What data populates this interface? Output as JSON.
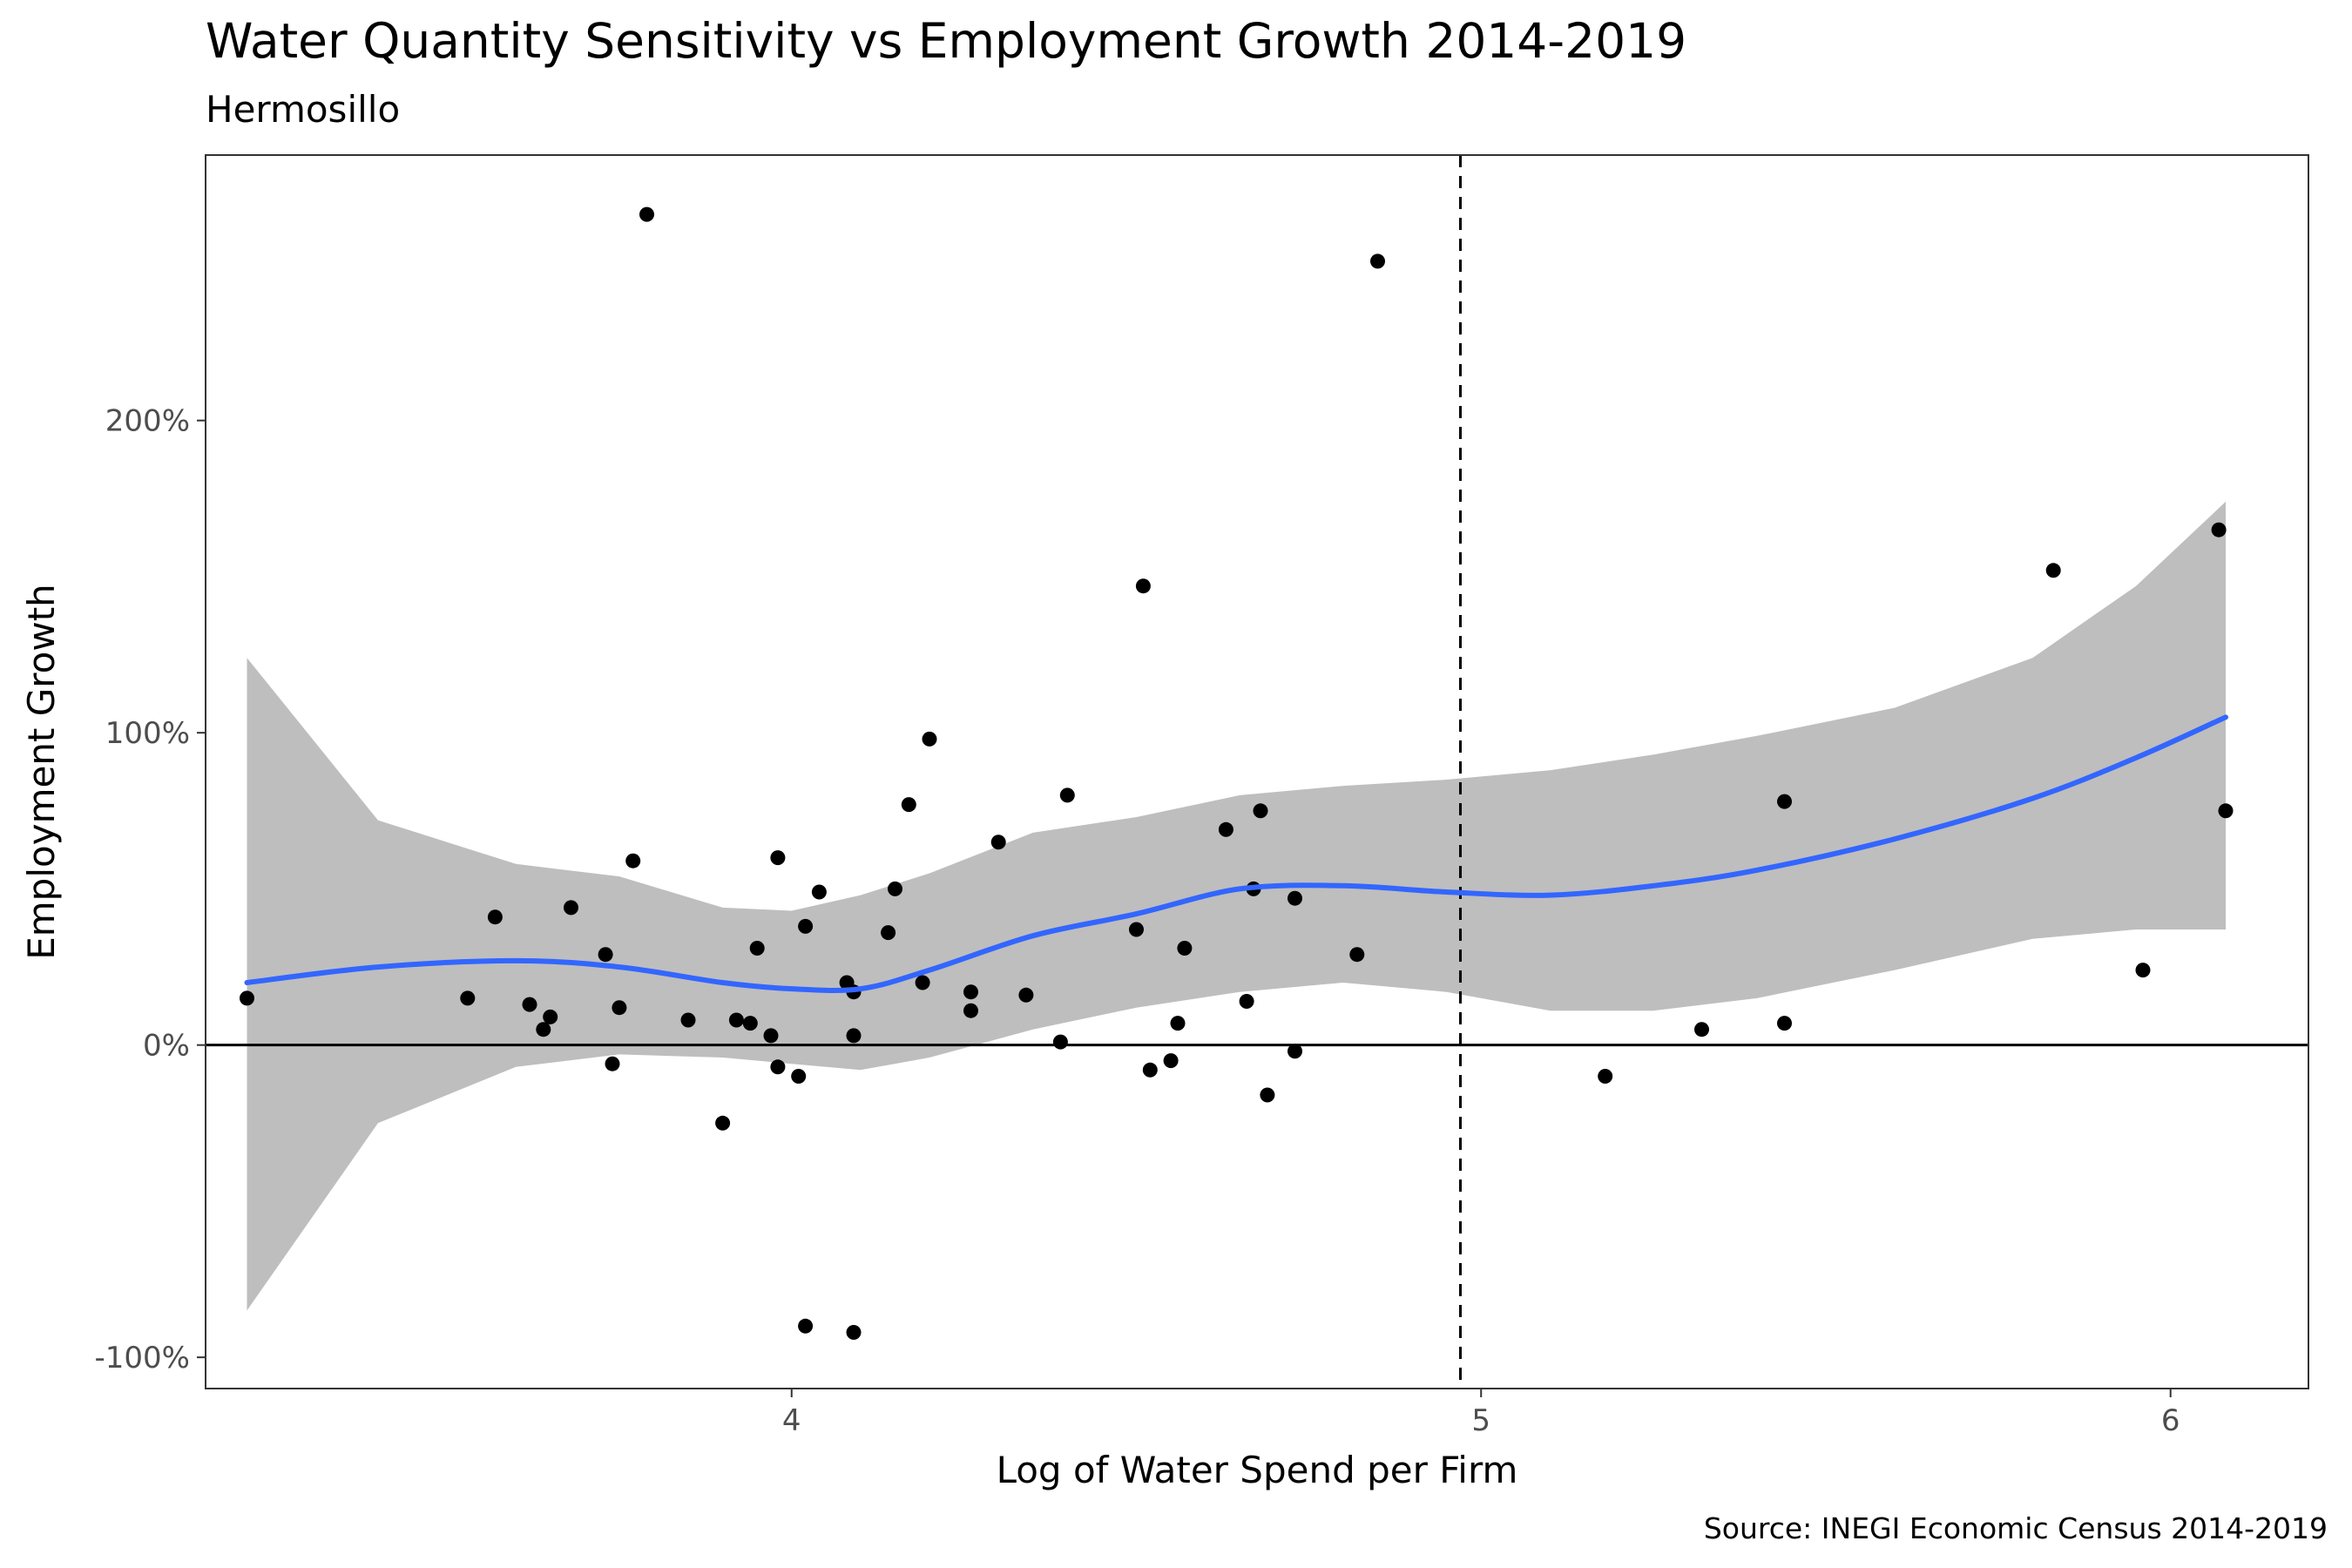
{
  "chart_data": {
    "type": "scatter",
    "title": "Water Quantity Sensitivity vs Employment Growth 2014-2019",
    "subtitle": "Hermosillo",
    "xlabel": "Log of Water Spend per Firm",
    "ylabel": "Employment Growth",
    "caption": "Source: INEGI Economic Census 2014-2019",
    "xlim": [
      3.15,
      6.2
    ],
    "ylim": [
      -110,
      285
    ],
    "x_ticks": [
      4,
      5,
      6
    ],
    "x_tick_labels": [
      "4",
      "5",
      "6"
    ],
    "y_ticks": [
      -100,
      0,
      100,
      200
    ],
    "y_tick_labels": [
      "-100%",
      "0%",
      "100%",
      "200%"
    ],
    "grid": false,
    "reference_lines": {
      "horizontal_y": 0,
      "vertical_x": 4.97
    },
    "colors": {
      "points": "#000000",
      "smooth_line": "#3366ff",
      "confidence_band": "#bebebe",
      "reference_line": "#000000",
      "panel_border": "#333333"
    },
    "points": [
      {
        "x": 3.21,
        "y": 15
      },
      {
        "x": 3.53,
        "y": 15
      },
      {
        "x": 3.57,
        "y": 41
      },
      {
        "x": 3.62,
        "y": 13
      },
      {
        "x": 3.64,
        "y": 5
      },
      {
        "x": 3.65,
        "y": 9
      },
      {
        "x": 3.68,
        "y": 44
      },
      {
        "x": 3.73,
        "y": 29
      },
      {
        "x": 3.74,
        "y": -6
      },
      {
        "x": 3.75,
        "y": 12
      },
      {
        "x": 3.77,
        "y": 59
      },
      {
        "x": 3.79,
        "y": 266
      },
      {
        "x": 3.85,
        "y": 8
      },
      {
        "x": 3.9,
        "y": -25
      },
      {
        "x": 3.92,
        "y": 8
      },
      {
        "x": 3.94,
        "y": 7
      },
      {
        "x": 3.95,
        "y": 31
      },
      {
        "x": 3.97,
        "y": 3
      },
      {
        "x": 3.98,
        "y": 60
      },
      {
        "x": 3.98,
        "y": -7
      },
      {
        "x": 4.01,
        "y": -10
      },
      {
        "x": 4.02,
        "y": 38
      },
      {
        "x": 4.02,
        "y": -90
      },
      {
        "x": 4.04,
        "y": 49
      },
      {
        "x": 4.08,
        "y": 20
      },
      {
        "x": 4.09,
        "y": 3
      },
      {
        "x": 4.09,
        "y": 17
      },
      {
        "x": 4.09,
        "y": -92
      },
      {
        "x": 4.14,
        "y": 36
      },
      {
        "x": 4.15,
        "y": 50
      },
      {
        "x": 4.17,
        "y": 77
      },
      {
        "x": 4.19,
        "y": 20
      },
      {
        "x": 4.2,
        "y": 98
      },
      {
        "x": 4.26,
        "y": 17
      },
      {
        "x": 4.26,
        "y": 11
      },
      {
        "x": 4.3,
        "y": 65
      },
      {
        "x": 4.34,
        "y": 16
      },
      {
        "x": 4.39,
        "y": 1
      },
      {
        "x": 4.4,
        "y": 80
      },
      {
        "x": 4.5,
        "y": 37
      },
      {
        "x": 4.51,
        "y": 147
      },
      {
        "x": 4.52,
        "y": -8
      },
      {
        "x": 4.55,
        "y": -5
      },
      {
        "x": 4.56,
        "y": 7
      },
      {
        "x": 4.57,
        "y": 31
      },
      {
        "x": 4.63,
        "y": 69
      },
      {
        "x": 4.66,
        "y": 14
      },
      {
        "x": 4.67,
        "y": 50
      },
      {
        "x": 4.68,
        "y": 75
      },
      {
        "x": 4.69,
        "y": -16
      },
      {
        "x": 4.73,
        "y": 47
      },
      {
        "x": 4.73,
        "y": -2
      },
      {
        "x": 4.82,
        "y": 29
      },
      {
        "x": 4.85,
        "y": 251
      },
      {
        "x": 5.18,
        "y": -10
      },
      {
        "x": 5.32,
        "y": 5
      },
      {
        "x": 5.44,
        "y": 78
      },
      {
        "x": 5.44,
        "y": 7
      },
      {
        "x": 5.83,
        "y": 152
      },
      {
        "x": 5.96,
        "y": 24
      },
      {
        "x": 6.07,
        "y": 165
      },
      {
        "x": 6.08,
        "y": 75
      }
    ],
    "smooth": {
      "x": [
        3.21,
        3.4,
        3.6,
        3.75,
        3.9,
        4.0,
        4.1,
        4.2,
        4.35,
        4.5,
        4.65,
        4.8,
        4.95,
        5.1,
        5.25,
        5.4,
        5.6,
        5.8,
        5.95,
        6.08
      ],
      "y": [
        20,
        25,
        27,
        25,
        20,
        18,
        18,
        24,
        35,
        42,
        50,
        51,
        49,
        48,
        51,
        56,
        66,
        79,
        92,
        105
      ],
      "lower": [
        -85,
        -25,
        -7,
        -3,
        -4,
        -6,
        -8,
        -4,
        5,
        12,
        17,
        20,
        17,
        11,
        11,
        15,
        24,
        34,
        37,
        37
      ],
      "upper": [
        124,
        72,
        58,
        54,
        44,
        43,
        48,
        55,
        68,
        73,
        80,
        83,
        85,
        88,
        93,
        99,
        108,
        124,
        147,
        174
      ]
    }
  }
}
